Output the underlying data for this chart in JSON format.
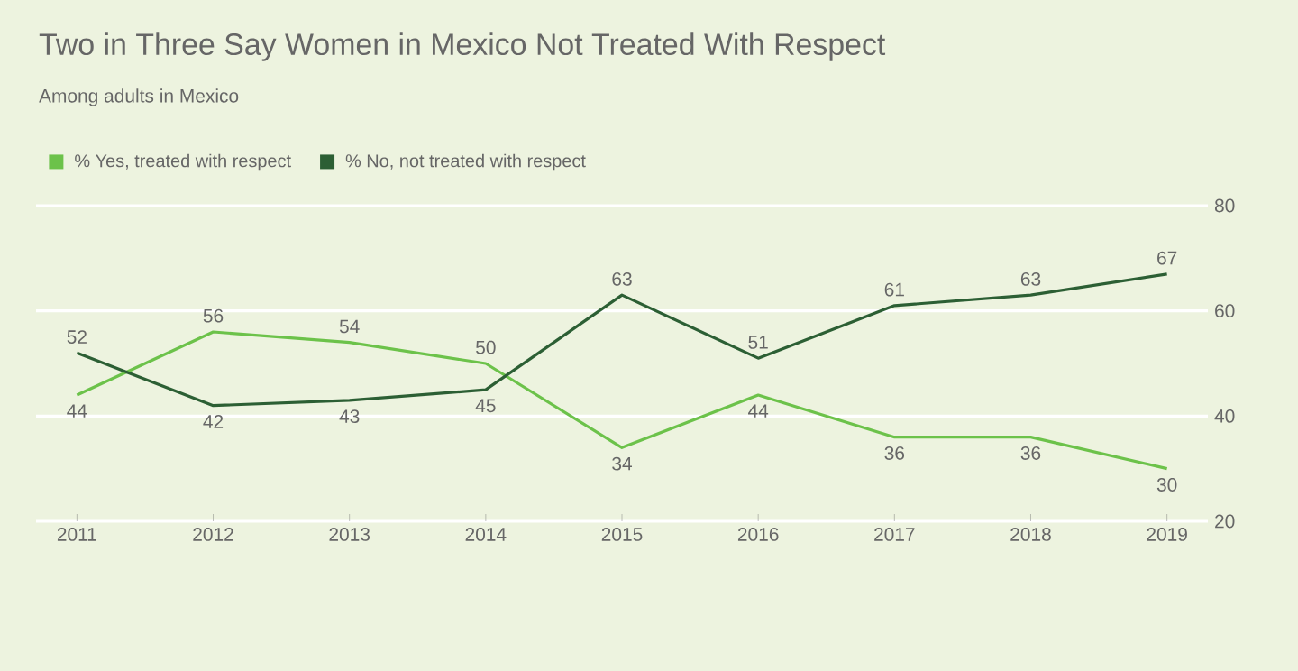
{
  "chart_data": {
    "type": "line",
    "title": "Two in Three Say Women in Mexico Not Treated With Respect",
    "subtitle": "Among adults in Mexico",
    "categories": [
      "2011",
      "2012",
      "2013",
      "2014",
      "2015",
      "2016",
      "2017",
      "2018",
      "2019"
    ],
    "series": [
      {
        "name": "% Yes, treated with respect",
        "color": "#6cc24a",
        "values": [
          44,
          56,
          54,
          50,
          34,
          44,
          36,
          36,
          30
        ]
      },
      {
        "name": "% No, not treated with respect",
        "color": "#2c5f34",
        "values": [
          52,
          42,
          43,
          45,
          63,
          51,
          61,
          63,
          67
        ]
      }
    ],
    "ylim": [
      20,
      80
    ],
    "yticks": [
      20,
      40,
      60,
      80
    ],
    "grid": "y",
    "legend": "top left",
    "data_labels": true,
    "marker": "none",
    "line_style": "solid"
  }
}
